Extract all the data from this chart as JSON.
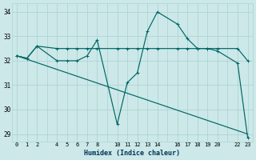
{
  "xlabel": "Humidex (Indice chaleur)",
  "bg_color": "#cce8e8",
  "grid_color": "#b0d4d4",
  "line_color": "#006666",
  "xlim": [
    -0.5,
    23.5
  ],
  "ylim": [
    28.7,
    34.35
  ],
  "xticks": [
    0,
    1,
    2,
    4,
    5,
    6,
    7,
    8,
    10,
    11,
    12,
    13,
    14,
    16,
    17,
    18,
    19,
    20,
    22,
    23
  ],
  "yticks": [
    29,
    30,
    31,
    32,
    33,
    34
  ],
  "line_flat": {
    "x": [
      0,
      1,
      2,
      4,
      5,
      6,
      7,
      8,
      10,
      11,
      12,
      13,
      14,
      16,
      17,
      18,
      19,
      20,
      22,
      23
    ],
    "y": [
      32.2,
      32.1,
      32.6,
      32.5,
      32.5,
      32.5,
      32.5,
      32.5,
      32.5,
      32.5,
      32.5,
      32.5,
      32.5,
      32.5,
      32.5,
      32.5,
      32.5,
      32.5,
      32.5,
      32.0
    ]
  },
  "line_peak": {
    "x": [
      0,
      1,
      2,
      4,
      5,
      6,
      7,
      8,
      10,
      11,
      12,
      13,
      14,
      16,
      17,
      18,
      19,
      20,
      22,
      23
    ],
    "y": [
      32.2,
      32.1,
      32.6,
      32.0,
      32.0,
      32.0,
      32.2,
      32.85,
      29.4,
      31.1,
      31.5,
      33.2,
      34.0,
      33.5,
      32.9,
      32.5,
      32.5,
      32.4,
      31.9,
      28.85
    ]
  },
  "line_diag": {
    "x": [
      0,
      23
    ],
    "y": [
      32.2,
      29.0
    ]
  }
}
